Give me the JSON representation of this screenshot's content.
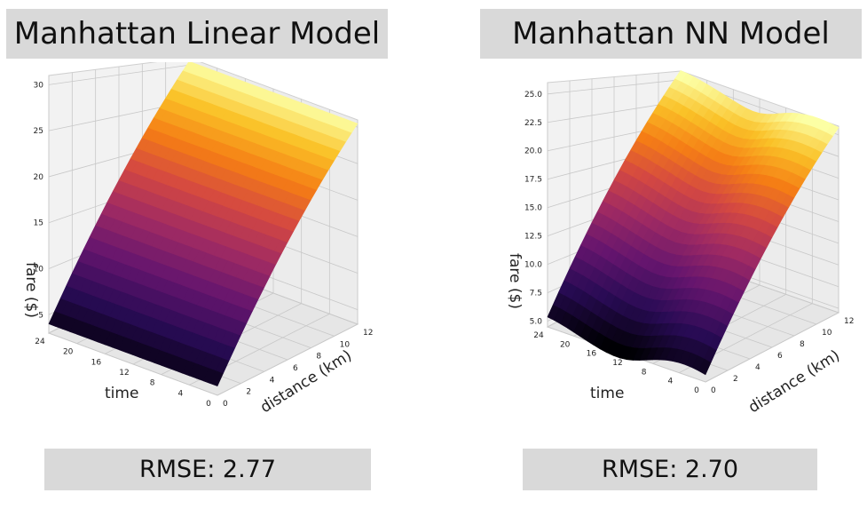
{
  "chart_data": [
    {
      "type": "surface3d",
      "title": "Manhattan Linear Model",
      "xlabel": "distance (km)",
      "ylabel": "time",
      "zlabel": "fare ($)",
      "x_ticks": [
        "0",
        "2",
        "4",
        "6",
        "8",
        "10",
        "12"
      ],
      "y_ticks": [
        "0",
        "4",
        "8",
        "12",
        "16",
        "20",
        "24"
      ],
      "z_ticks": [
        "5",
        "10",
        "15",
        "20",
        "25",
        "30"
      ],
      "x_range": [
        0,
        12
      ],
      "y_range": [
        0,
        24
      ],
      "z_range": [
        3,
        31
      ],
      "colormap": "inferno",
      "surface": {
        "kind": "plane",
        "fare_at_distance_0": 4.0,
        "fare_at_distance_12": 30.5,
        "time_effect": 0.0
      },
      "footer": "RMSE: 2.77"
    },
    {
      "type": "surface3d",
      "title": "Manhattan NN Model",
      "xlabel": "distance (km)",
      "ylabel": "time",
      "zlabel": "fare ($)",
      "x_ticks": [
        "0",
        "2",
        "4",
        "6",
        "8",
        "10",
        "12"
      ],
      "y_ticks": [
        "0",
        "4",
        "8",
        "12",
        "16",
        "20",
        "24"
      ],
      "z_ticks": [
        "5.0",
        "7.5",
        "10.0",
        "12.5",
        "15.0",
        "17.5",
        "20.0",
        "22.5",
        "25.0"
      ],
      "x_range": [
        0,
        12
      ],
      "y_range": [
        0,
        24
      ],
      "z_range": [
        4.5,
        26
      ],
      "colormap": "inferno",
      "surface": {
        "kind": "wavy",
        "fare_at_distance_0": 4.8,
        "fare_at_distance_12": 25.5,
        "time_effect": 1.0
      },
      "footer": "RMSE: 2.70"
    }
  ]
}
